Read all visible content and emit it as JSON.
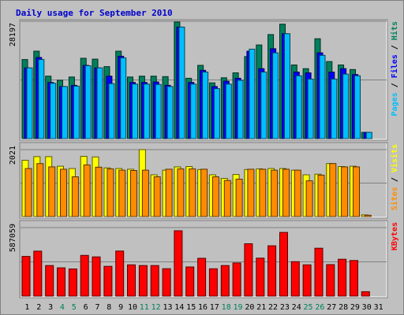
{
  "chart_data": {
    "type": "bar",
    "title": "Daily usage for September 2010",
    "categories": [
      "1",
      "2",
      "3",
      "4",
      "5",
      "6",
      "7",
      "8",
      "9",
      "10",
      "11",
      "12",
      "13",
      "14",
      "15",
      "16",
      "17",
      "18",
      "19",
      "20",
      "21",
      "22",
      "23",
      "24",
      "25",
      "26",
      "27",
      "28",
      "29",
      "30",
      "31"
    ],
    "weekend_days": [
      "4",
      "5",
      "11",
      "12",
      "18",
      "19",
      "25",
      "26"
    ],
    "panels": [
      {
        "id": "hits_files_pages",
        "ymax_label": "28197",
        "ylim": [
          0,
          28197
        ],
        "legend": [
          "Pages",
          "Files",
          "Hits"
        ],
        "series": [
          {
            "name": "Hits",
            "color": "#00805c",
            "values": [
              19000,
              21000,
              15000,
              14000,
              14800,
              19300,
              19100,
              17300,
              21000,
              14800,
              15000,
              15000,
              14900,
              28000,
              14500,
              17600,
              13400,
              14600,
              15800,
              19700,
              22500,
              25000,
              27500,
              17700,
              16800,
              24000,
              18500,
              17700,
              16600,
              1500,
              0
            ]
          },
          {
            "name": "Files",
            "color": "#0000ff",
            "values": [
              17000,
              19500,
              13500,
              12500,
              12800,
              17600,
              17000,
              15000,
              19800,
              13500,
              13500,
              13600,
              12800,
              26800,
              13500,
              16400,
              12500,
              13800,
              14500,
              21000,
              16800,
              21600,
              25200,
              16000,
              15800,
              20600,
              16000,
              16800,
              15400,
              1500,
              0
            ]
          },
          {
            "name": "Pages",
            "color": "#00bfff",
            "values": [
              17000,
              19000,
              13300,
              12500,
              12600,
              17500,
              17000,
              13200,
              19400,
              13100,
              13100,
              13000,
              12500,
              26800,
              13100,
              16000,
              12000,
              13100,
              14000,
              21500,
              16000,
              20600,
              25200,
              15100,
              14300,
              20000,
              14300,
              15500,
              15100,
              1500,
              0
            ]
          }
        ]
      },
      {
        "id": "visits_sites",
        "ymax_label": "2021",
        "ylim": [
          0,
          2021
        ],
        "legend": [
          "Sites",
          "Visits"
        ],
        "series": [
          {
            "name": "Visits",
            "color": "#ffff00",
            "values": [
              1700,
              1810,
              1810,
              1520,
              1450,
              1820,
              1800,
              1470,
              1450,
              1430,
              2020,
              1260,
              1400,
              1500,
              1510,
              1420,
              1260,
              1150,
              1270,
              1420,
              1440,
              1450,
              1450,
              1400,
              1260,
              1280,
              1600,
              1510,
              1520,
              50,
              0
            ]
          },
          {
            "name": "Sites",
            "color": "#ff8c00",
            "values": [
              1450,
              1600,
              1500,
              1430,
              1200,
              1560,
              1490,
              1440,
              1400,
              1390,
              1400,
              1200,
              1430,
              1440,
              1440,
              1430,
              1200,
              1090,
              1130,
              1430,
              1430,
              1400,
              1430,
              1400,
              1080,
              1250,
              1600,
              1500,
              1500,
              40,
              0
            ]
          }
        ]
      },
      {
        "id": "kbytes",
        "ymax_label": "587059",
        "ylim": [
          0,
          587059
        ],
        "legend": [
          "KBytes"
        ],
        "series": [
          {
            "name": "KBytes",
            "color": "#ff0000",
            "values": [
              340000,
              385000,
              262000,
              242000,
              233000,
              349000,
              336000,
              255000,
              386000,
              268000,
              262000,
              262000,
              235000,
              560000,
              250000,
              324000,
              234000,
              262000,
              284000,
              449000,
              325000,
              431000,
              546000,
              295000,
              268000,
              410000,
              270000,
              316000,
              305000,
              38000,
              0
            ]
          }
        ]
      }
    ]
  }
}
